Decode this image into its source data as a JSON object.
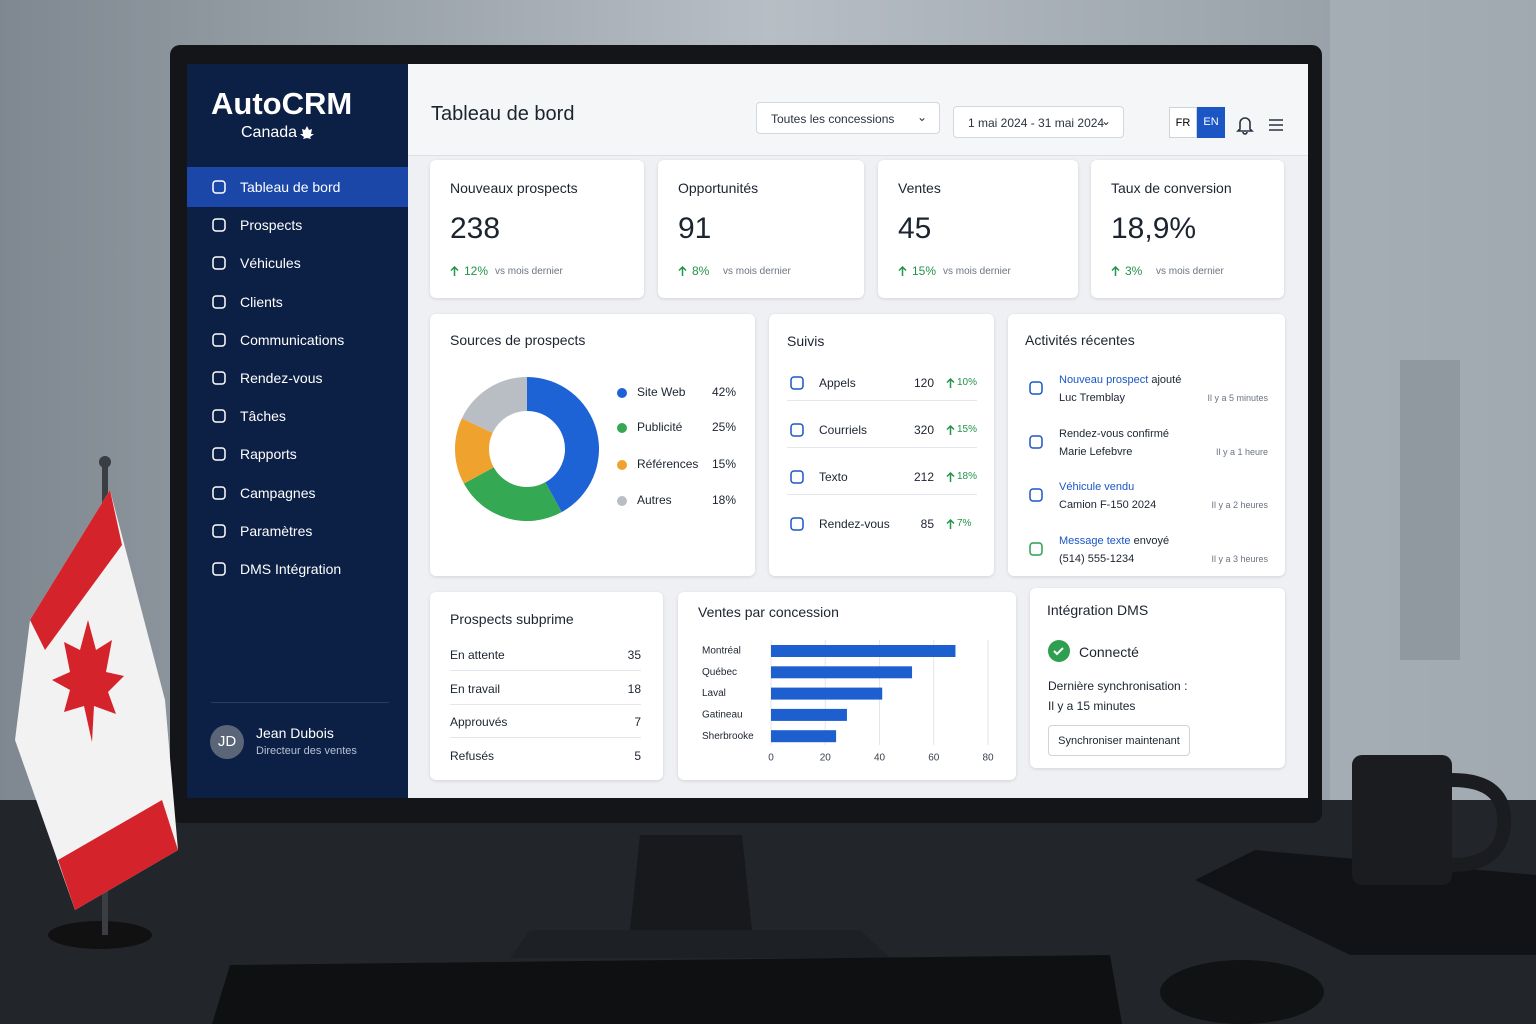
{
  "brand": {
    "name": "AutoCRM",
    "region": "Canada"
  },
  "nav": [
    "Tableau de bord",
    "Prospects",
    "Véhicules",
    "Clients",
    "Communications",
    "Rendez-vous",
    "Tâches",
    "Rapports",
    "Campagnes",
    "Paramètres",
    "DMS Intégration"
  ],
  "user": {
    "initials": "JD",
    "name": "Jean Dubois",
    "role": "Directeur des ventes"
  },
  "header": {
    "title": "Tableau de bord",
    "dealer": "Toutes les concessions",
    "dates": "1 mai 2024 - 31 mai 2024",
    "languages": [
      "FR",
      "EN"
    ]
  },
  "kpis": [
    {
      "label": "Nouveaux prospects",
      "value": "238",
      "change": "12%",
      "note": "vs mois dernier"
    },
    {
      "label": "Opportunités",
      "value": "91",
      "change": "8%",
      "note": "vs mois dernier"
    },
    {
      "label": "Ventes",
      "value": "45",
      "change": "15%",
      "note": "vs mois dernier"
    },
    {
      "label": "Taux de conversion",
      "value": "18,9%",
      "change": "3%",
      "note": "vs mois dernier"
    }
  ],
  "followups": {
    "title": "Suivis",
    "rows": [
      {
        "label": "Appels",
        "count": 120,
        "change": "10%"
      },
      {
        "label": "Courriels",
        "count": 320,
        "change": "15%"
      },
      {
        "label": "Texto",
        "count": 212,
        "change": "18%"
      },
      {
        "label": "Rendez-vous",
        "count": 85,
        "change": "7%"
      }
    ]
  },
  "activities": {
    "title": "Activités récentes",
    "items": [
      {
        "link": "Nouveau prospect",
        "text": "ajouté",
        "detail": "Luc Tremblay",
        "time": "Il y a 5 minutes"
      },
      {
        "text": "Rendez-vous confirmé",
        "detail": "Marie Lefebvre",
        "time": "Il y a 1 heure"
      },
      {
        "link": "Véhicule vendu",
        "detail": "Camion F-150 2024",
        "time": "Il y a 2 heures"
      },
      {
        "link": "Message texte",
        "text": "envoyé",
        "detail": "(514) 555-1234",
        "time": "Il y a 3 heures"
      }
    ]
  },
  "subprime": {
    "title": "Prospects subprime",
    "rows": [
      {
        "label": "En attente",
        "count": 35
      },
      {
        "label": "En travail",
        "count": 18
      },
      {
        "label": "Approuvés",
        "count": 7
      },
      {
        "label": "Refusés",
        "count": 5
      }
    ]
  },
  "dms": {
    "title": "Intégration DMS",
    "status": "Connecté",
    "sync_label": "Dernière synchronisation :",
    "sync_time": "Il y a 15 minutes",
    "button": "Synchroniser maintenant"
  },
  "chart_data": [
    {
      "type": "donut",
      "title": "Sources de prospects",
      "categories": [
        "Site Web",
        "Publicité",
        "Références",
        "Autres"
      ],
      "values": [
        42,
        25,
        15,
        18
      ],
      "value_labels": [
        "42%",
        "25%",
        "15%",
        "18%"
      ],
      "colors": [
        "#1e63d6",
        "#34a853",
        "#f0a22e",
        "#b9bdc4"
      ]
    },
    {
      "type": "bar",
      "orientation": "horizontal",
      "title": "Ventes par concession",
      "categories": [
        "Montréal",
        "Québec",
        "Laval",
        "Gatineau",
        "Sherbrooke"
      ],
      "values": [
        68,
        52,
        41,
        28,
        24
      ],
      "color": "#1e5fd0",
      "xlim": [
        0,
        80
      ],
      "xticks": [
        0,
        20,
        40,
        60,
        80
      ],
      "grid": true
    }
  ]
}
